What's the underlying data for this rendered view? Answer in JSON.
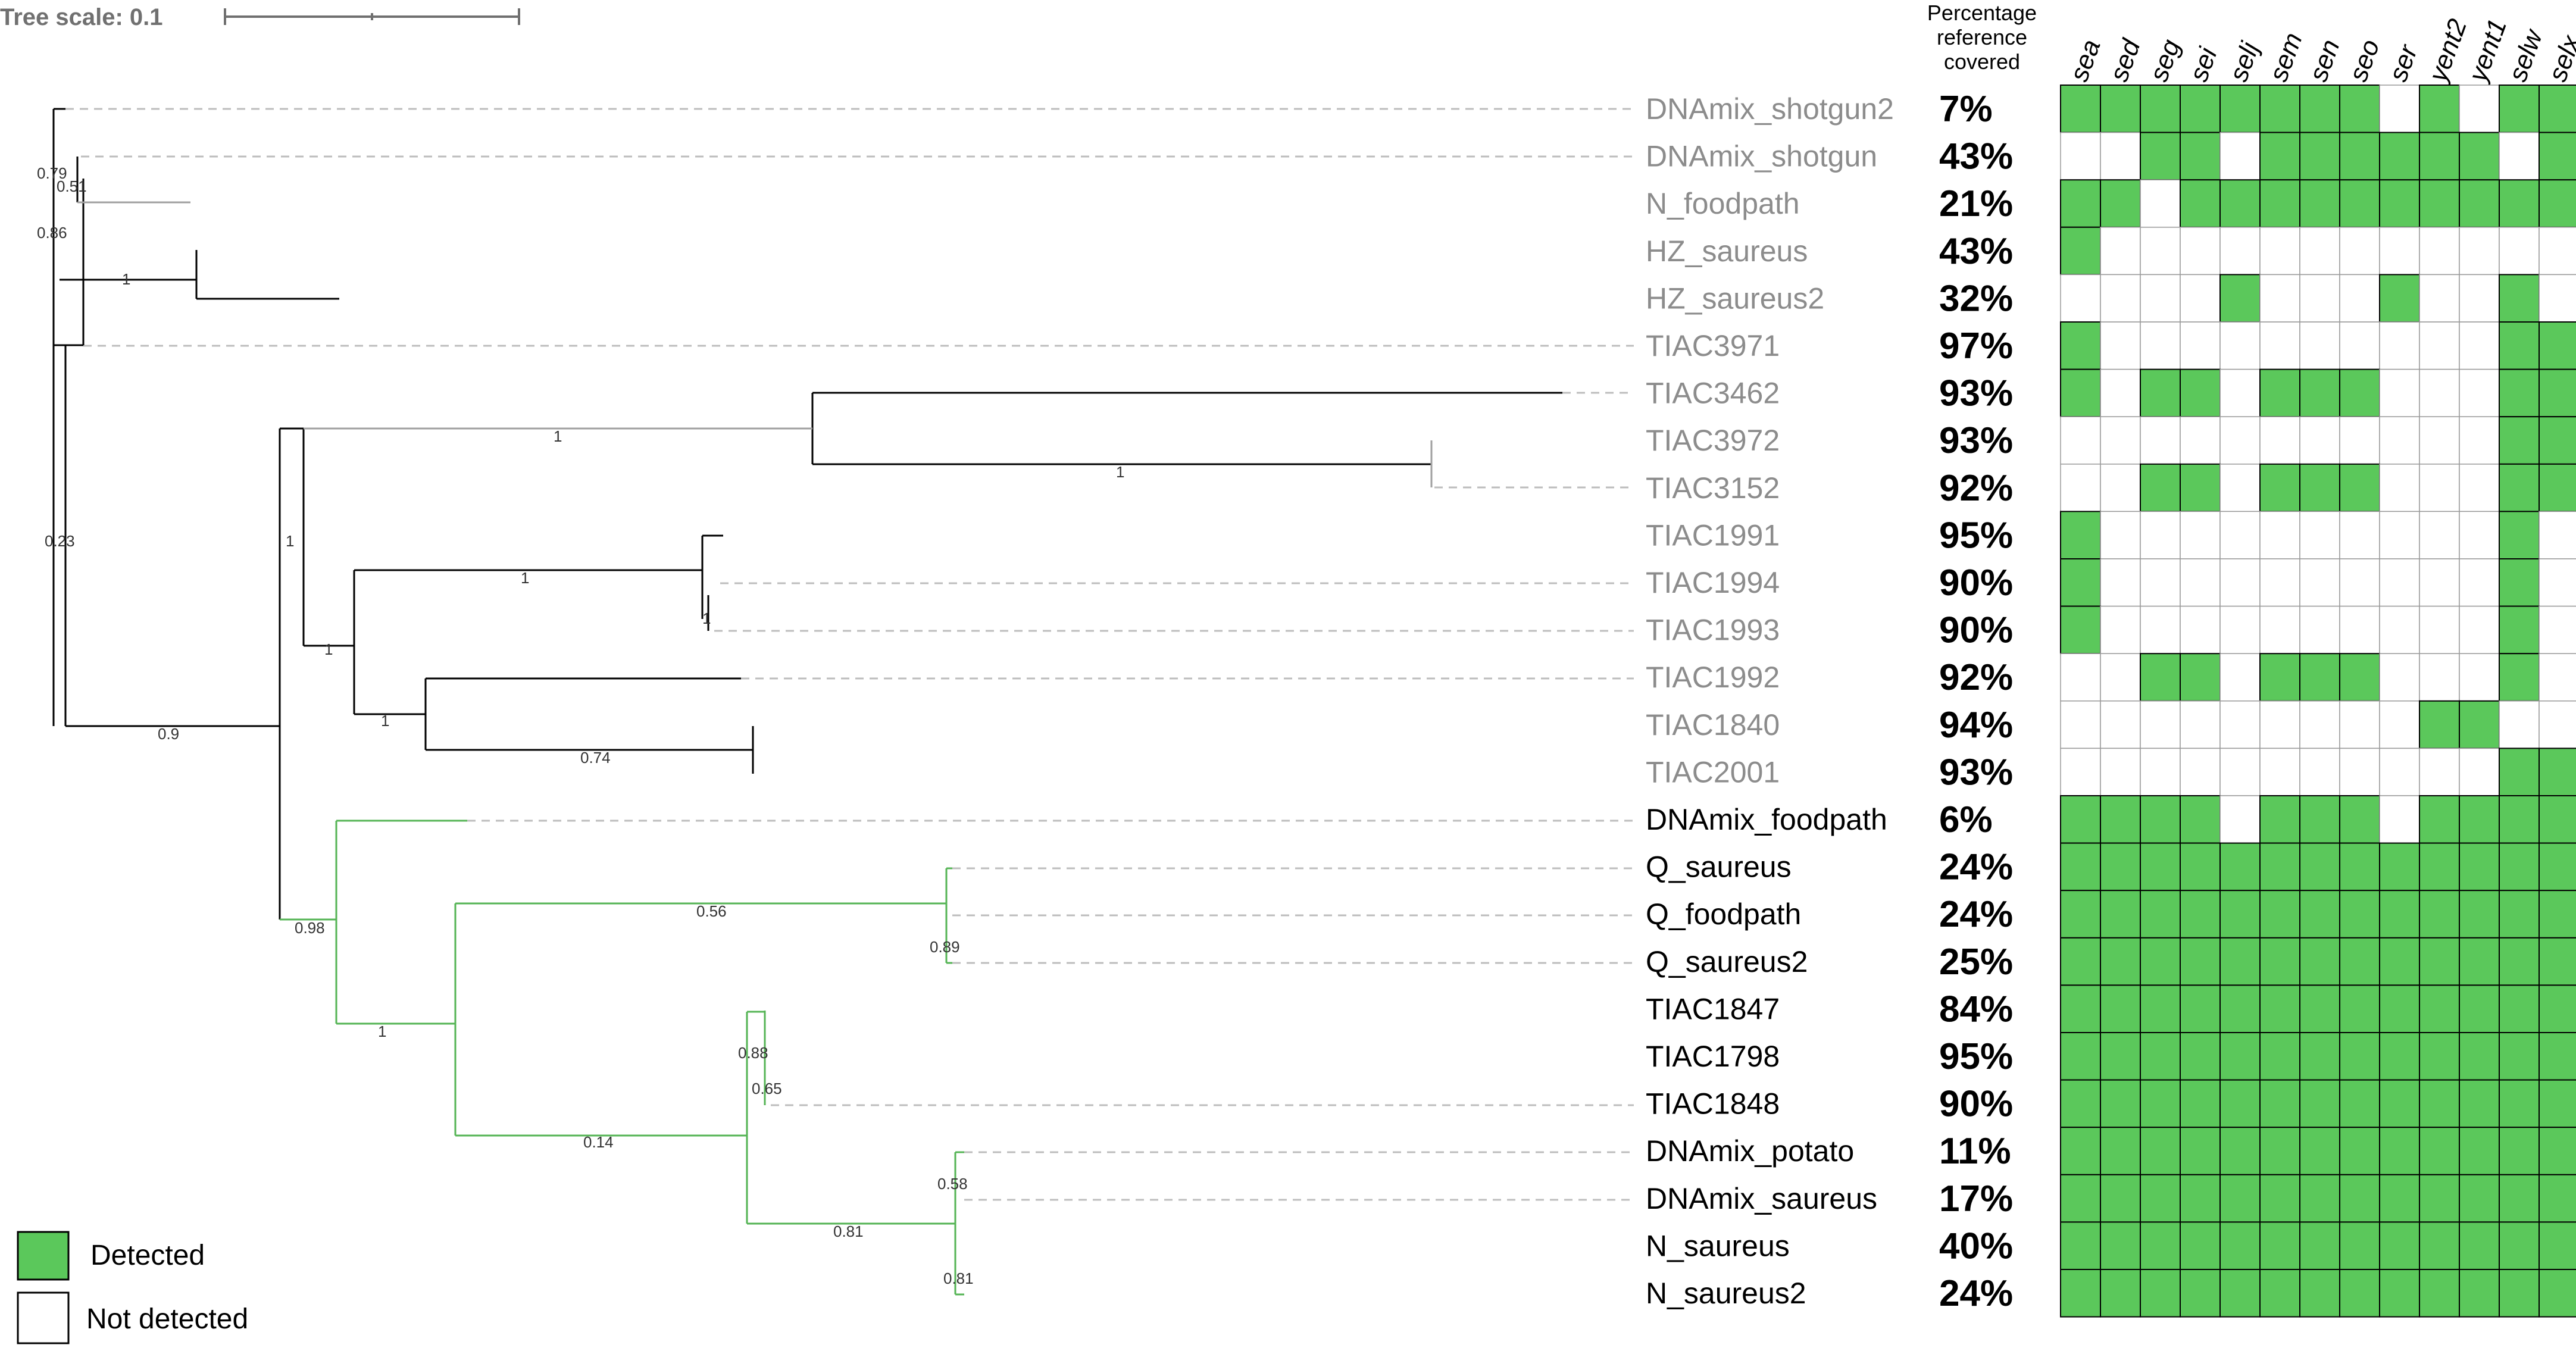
{
  "tree_scale_label": "Tree scale: 0.1",
  "header": {
    "percentage_lines": [
      "Percentage",
      "reference",
      "covered"
    ]
  },
  "genes": [
    "sea",
    "sed",
    "seg",
    "sei",
    "selj",
    "sem",
    "sen",
    "seo",
    "ser",
    "yent2",
    "yent1",
    "selw",
    "selx"
  ],
  "legend": {
    "detected_label": "Detected",
    "not_detected_label": "Not detected",
    "detected_color": "#5bc85b",
    "not_detected_color": "#ffffff"
  },
  "colors": {
    "detected": "#5bc85b",
    "grey_label": "#8c8c8c",
    "green_branch": "#55b455",
    "grey_branch": "#a0a0a0"
  },
  "support_values": [
    "0.79",
    "0.51",
    "0.86",
    "1",
    "0.23",
    "1",
    "1",
    "1",
    "1",
    "1",
    "1",
    "1",
    "0.74",
    "0.9",
    "0.98",
    "1",
    "0.56",
    "0.89",
    "0.88",
    "0.65",
    "0.14",
    "0.58",
    "0.81"
  ],
  "rows": [
    {
      "name": "DNAmix_shotgun2",
      "pct": "7%",
      "grey": true,
      "cells": [
        1,
        1,
        1,
        1,
        1,
        1,
        1,
        1,
        0,
        1,
        0,
        1,
        1
      ]
    },
    {
      "name": "DNAmix_shotgun",
      "pct": "43%",
      "grey": true,
      "cells": [
        0,
        0,
        1,
        1,
        0,
        1,
        1,
        1,
        1,
        1,
        1,
        0,
        1
      ]
    },
    {
      "name": "N_foodpath",
      "pct": "21%",
      "grey": true,
      "cells": [
        1,
        1,
        0,
        1,
        1,
        1,
        1,
        1,
        1,
        1,
        1,
        1,
        1
      ]
    },
    {
      "name": "HZ_saureus",
      "pct": "43%",
      "grey": true,
      "cells": [
        1,
        0,
        0,
        0,
        0,
        0,
        0,
        0,
        0,
        0,
        0,
        0,
        0
      ]
    },
    {
      "name": "HZ_saureus2",
      "pct": "32%",
      "grey": true,
      "cells": [
        0,
        0,
        0,
        0,
        1,
        0,
        0,
        0,
        1,
        0,
        0,
        1,
        0
      ]
    },
    {
      "name": "TIAC3971",
      "pct": "97%",
      "grey": true,
      "cells": [
        1,
        0,
        0,
        0,
        0,
        0,
        0,
        0,
        0,
        0,
        0,
        1,
        1
      ]
    },
    {
      "name": "TIAC3462",
      "pct": "93%",
      "grey": true,
      "cells": [
        1,
        0,
        1,
        1,
        0,
        1,
        1,
        1,
        0,
        0,
        0,
        1,
        1
      ]
    },
    {
      "name": "TIAC3972",
      "pct": "93%",
      "grey": true,
      "cells": [
        0,
        0,
        0,
        0,
        0,
        0,
        0,
        0,
        0,
        0,
        0,
        1,
        1
      ]
    },
    {
      "name": "TIAC3152",
      "pct": "92%",
      "grey": true,
      "cells": [
        0,
        0,
        1,
        1,
        0,
        1,
        1,
        1,
        0,
        0,
        0,
        1,
        1
      ]
    },
    {
      "name": "TIAC1991",
      "pct": "95%",
      "grey": true,
      "cells": [
        1,
        0,
        0,
        0,
        0,
        0,
        0,
        0,
        0,
        0,
        0,
        1,
        0
      ]
    },
    {
      "name": "TIAC1994",
      "pct": "90%",
      "grey": true,
      "cells": [
        1,
        0,
        0,
        0,
        0,
        0,
        0,
        0,
        0,
        0,
        0,
        1,
        0
      ]
    },
    {
      "name": "TIAC1993",
      "pct": "90%",
      "grey": true,
      "cells": [
        1,
        0,
        0,
        0,
        0,
        0,
        0,
        0,
        0,
        0,
        0,
        1,
        0
      ]
    },
    {
      "name": "TIAC1992",
      "pct": "92%",
      "grey": true,
      "cells": [
        0,
        0,
        1,
        1,
        0,
        1,
        1,
        1,
        0,
        0,
        0,
        1,
        0
      ]
    },
    {
      "name": "TIAC1840",
      "pct": "94%",
      "grey": true,
      "cells": [
        0,
        0,
        0,
        0,
        0,
        0,
        0,
        0,
        0,
        1,
        1,
        0,
        0
      ]
    },
    {
      "name": "TIAC2001",
      "pct": "93%",
      "grey": true,
      "cells": [
        0,
        0,
        0,
        0,
        0,
        0,
        0,
        0,
        0,
        0,
        0,
        1,
        1
      ]
    },
    {
      "name": "DNAmix_foodpath",
      "pct": "6%",
      "grey": false,
      "cells": [
        1,
        1,
        1,
        1,
        0,
        1,
        1,
        1,
        0,
        1,
        1,
        1,
        1
      ]
    },
    {
      "name": "Q_saureus",
      "pct": "24%",
      "grey": false,
      "cells": [
        1,
        1,
        1,
        1,
        1,
        1,
        1,
        1,
        1,
        1,
        1,
        1,
        1
      ]
    },
    {
      "name": "Q_foodpath",
      "pct": "24%",
      "grey": false,
      "cells": [
        1,
        1,
        1,
        1,
        1,
        1,
        1,
        1,
        1,
        1,
        1,
        1,
        1
      ]
    },
    {
      "name": "Q_saureus2",
      "pct": "25%",
      "grey": false,
      "cells": [
        1,
        1,
        1,
        1,
        1,
        1,
        1,
        1,
        1,
        1,
        1,
        1,
        1
      ]
    },
    {
      "name": "TIAC1847",
      "pct": "84%",
      "grey": false,
      "cells": [
        1,
        1,
        1,
        1,
        1,
        1,
        1,
        1,
        1,
        1,
        1,
        1,
        1
      ]
    },
    {
      "name": "TIAC1798",
      "pct": "95%",
      "grey": false,
      "cells": [
        1,
        1,
        1,
        1,
        1,
        1,
        1,
        1,
        1,
        1,
        1,
        1,
        1
      ]
    },
    {
      "name": "TIAC1848",
      "pct": "90%",
      "grey": false,
      "cells": [
        1,
        1,
        1,
        1,
        1,
        1,
        1,
        1,
        1,
        1,
        1,
        1,
        1
      ]
    },
    {
      "name": "DNAmix_potato",
      "pct": "11%",
      "grey": false,
      "cells": [
        1,
        1,
        1,
        1,
        1,
        1,
        1,
        1,
        1,
        1,
        1,
        1,
        1
      ]
    },
    {
      "name": "DNAmix_saureus",
      "pct": "17%",
      "grey": false,
      "cells": [
        1,
        1,
        1,
        1,
        1,
        1,
        1,
        1,
        1,
        1,
        1,
        1,
        1
      ]
    },
    {
      "name": "N_saureus",
      "pct": "40%",
      "grey": false,
      "cells": [
        1,
        1,
        1,
        1,
        1,
        1,
        1,
        1,
        1,
        1,
        1,
        1,
        1
      ]
    },
    {
      "name": "N_saureus2",
      "pct": "24%",
      "grey": false,
      "cells": [
        1,
        1,
        1,
        1,
        1,
        1,
        1,
        1,
        1,
        1,
        1,
        1,
        1
      ]
    }
  ]
}
